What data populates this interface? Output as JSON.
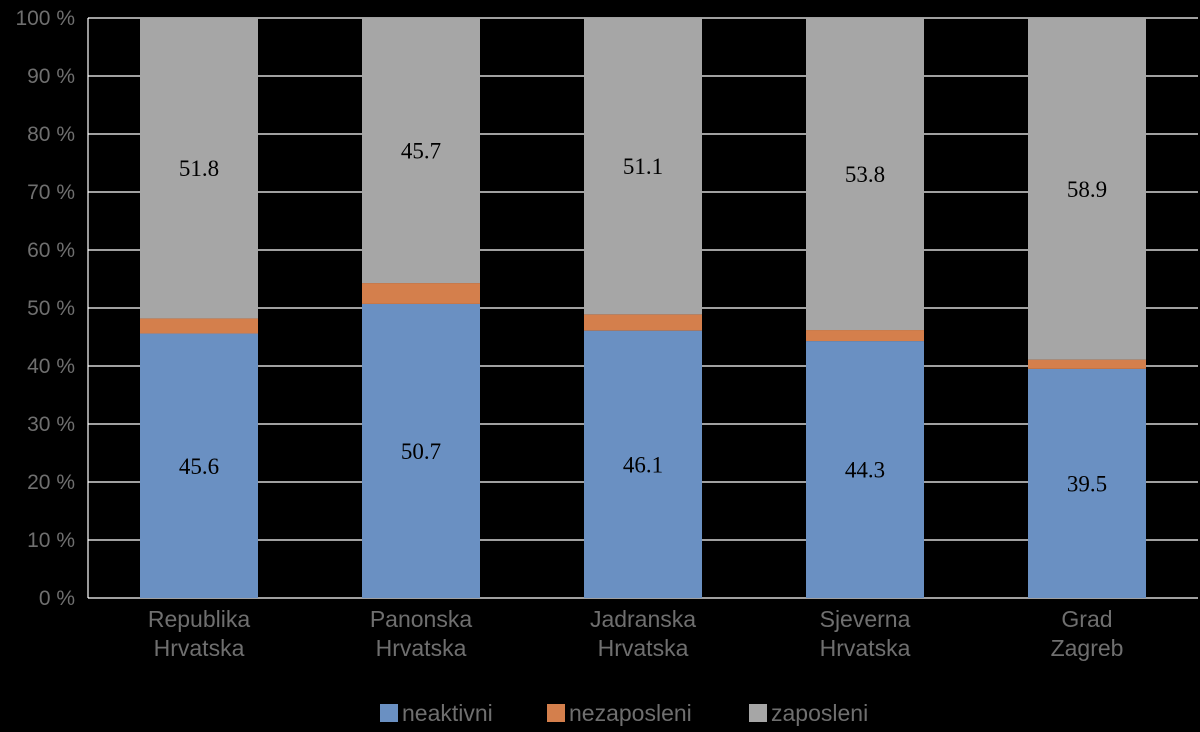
{
  "chart_data": {
    "type": "bar",
    "stacked": true,
    "percent_stacked": true,
    "categories": [
      [
        "Republika",
        "Hrvatska"
      ],
      [
        "Panonska",
        "Hrvatska"
      ],
      [
        "Jadranska",
        "Hrvatska"
      ],
      [
        "Sjeverna",
        "Hrvatska"
      ],
      [
        "Grad",
        "Zagreb"
      ]
    ],
    "series": [
      {
        "name": "neaktivni",
        "color": "#6a90c2",
        "values": [
          45.6,
          50.7,
          46.1,
          44.3,
          39.5
        ],
        "labels": [
          "45.6",
          "50.7",
          "46.1",
          "44.3",
          "39.5"
        ]
      },
      {
        "name": "nezaposleni",
        "color": "#d47f4c",
        "values": [
          2.6,
          3.6,
          2.8,
          1.9,
          1.6
        ],
        "labels": null
      },
      {
        "name": "zaposleni",
        "color": "#a6a6a6",
        "values": [
          51.8,
          45.7,
          51.1,
          53.8,
          58.9
        ],
        "labels": [
          "51.8",
          "45.7",
          "51.1",
          "53.8",
          "58.9"
        ]
      }
    ],
    "y_ticks": [
      "0 %",
      "10 %",
      "20 %",
      "30 %",
      "40 %",
      "50 %",
      "60 %",
      "70 %",
      "80 %",
      "90 %",
      "100 %"
    ],
    "ylim": [
      0,
      100
    ],
    "grid": true,
    "legend_position": "bottom",
    "background": "#000000",
    "gridline_color": "#ffffff"
  }
}
